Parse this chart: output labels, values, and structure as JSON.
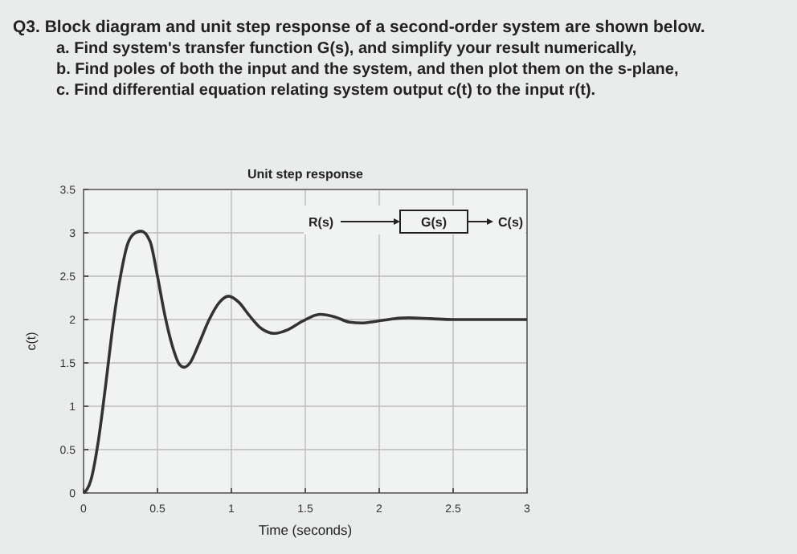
{
  "chart_data": {
    "type": "line",
    "title": "Unit step response",
    "xlabel": "Time (seconds)",
    "ylabel": "c(t)",
    "annotations": [
      "Q3. Block diagram and unit step response of a second-order system are shown below.",
      "a.  Find system's transfer function G(s), and simplify your result numerically,",
      "b.  Find poles of both the input and the system, and then plot them on the s-plane,",
      "c.  Find differential equation relating system output c(t) to the input r(t).",
      "R(s)",
      "G(s)",
      "C(s)"
    ],
    "x": [
      0,
      0.05,
      0.1,
      0.15,
      0.2,
      0.25,
      0.3,
      0.35,
      0.39,
      0.45,
      0.5,
      0.55,
      0.6,
      0.65,
      0.68,
      0.72,
      0.78,
      0.85,
      0.92,
      0.98,
      1.05,
      1.12,
      1.2,
      1.29,
      1.38,
      1.48,
      1.6,
      1.7,
      1.8,
      1.88,
      1.98,
      2.1,
      2.2,
      2.35,
      2.5,
      2.7,
      2.85,
      3
    ],
    "series": [
      {
        "color": "#333333",
        "values": [
          0,
          0.15,
          0.6,
          1.25,
          1.95,
          2.5,
          2.88,
          3.0,
          3.02,
          2.9,
          2.5,
          2.05,
          1.7,
          1.48,
          1.45,
          1.5,
          1.72,
          2.0,
          2.2,
          2.27,
          2.2,
          2.05,
          1.9,
          1.84,
          1.88,
          1.98,
          2.06,
          2.03,
          1.97,
          1.96,
          1.98,
          2.01,
          2.02,
          2.01,
          2.0,
          2.0,
          2.0,
          2.0
        ]
      }
    ],
    "xlim": [
      0,
      3
    ],
    "ylim": [
      0,
      3.5
    ],
    "xticks": [
      0,
      0.5,
      1,
      1.5,
      2,
      2.5,
      3
    ],
    "yticks": [
      0,
      0.5,
      1,
      1.5,
      2,
      2.5,
      3,
      3.5
    ],
    "grid": true,
    "line_style": "solid",
    "marker": "none"
  }
}
